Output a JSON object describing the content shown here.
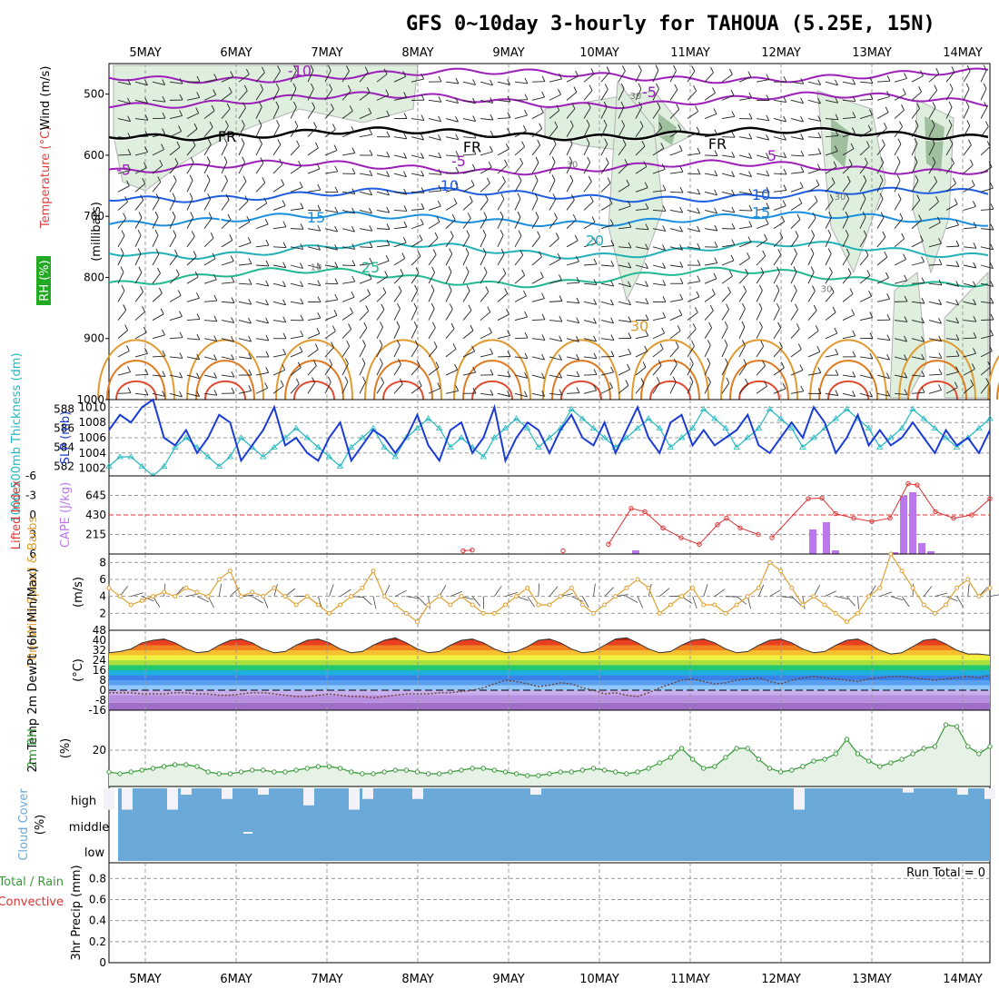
{
  "title": "GFS 0~10day 3-hourly for TAHOUA (5.25E, 15N)",
  "dates": [
    "5MAY",
    "6MAY",
    "7MAY",
    "8MAY",
    "9MAY",
    "10MAY",
    "11MAY",
    "12MAY",
    "13MAY",
    "14MAY"
  ],
  "colors": {
    "frame": "#000000",
    "grid": "#999999",
    "slp": "#1a3bd6",
    "thickness": "#22b8c0",
    "cape": "#bb77ee",
    "li": "#dd3333",
    "wind": "#e0a030",
    "rh": "#3a9a3a",
    "cloud": "#6aa9d8",
    "isotherm_cold": "#9b1fb8",
    "isotherm_mid": "#1d5de0",
    "isotherm_warm": "#e09a30"
  },
  "panels": {
    "profile": {
      "ylabel": "(millibars)",
      "left_labels": [
        "Temperature (°C)",
        "Wind (m/s)",
        "RH (%)"
      ],
      "yticks": [
        "500",
        "600",
        "700",
        "800",
        "900",
        "1000"
      ],
      "isotherm_labels": [
        "-10",
        "-5",
        "-5",
        "-5",
        "5",
        "5",
        "5",
        "10",
        "10",
        "15",
        "15",
        "20",
        "25",
        "30",
        "FR",
        "FR",
        "FR",
        "30",
        "30",
        "30",
        "30",
        "10"
      ]
    },
    "slp_thick": {
      "left_label": "1000-500mb Thickness (dm)",
      "right_label": "SLP (mb)",
      "left_ticks": [
        "588",
        "586",
        "584",
        "582"
      ],
      "right_ticks": [
        "1010",
        "1008",
        "1006",
        "1004",
        "1002"
      ]
    },
    "cape_li": {
      "left_label": "Lifted Index",
      "right_label": "CAPE (J/kg)",
      "li_ticks": [
        "-6",
        "-3",
        "0",
        "3",
        "6"
      ],
      "cape_ticks": [
        "645",
        "430",
        "215"
      ]
    },
    "wind10": {
      "label": "10m Wind Speed & Barbs",
      "unit": "(m/s)",
      "ticks": [
        "8",
        "6",
        "4",
        "2"
      ]
    },
    "temp2m": {
      "label": "2m Temp 2m DewPt (6hr Min/Max)",
      "unit": "(°C)",
      "ticks": [
        "48",
        "40",
        "32",
        "24",
        "16",
        "8",
        "0",
        "-8",
        "-16"
      ]
    },
    "rh2m": {
      "label": "2m RH",
      "unit": "(%)",
      "ticks": [
        "20"
      ]
    },
    "cloud": {
      "label": "Cloud Cover",
      "unit": "(%)",
      "levels": [
        "high",
        "middle",
        "low"
      ]
    },
    "precip": {
      "label": "3hr Precip (mm)",
      "side_label_1": "Total / Rain",
      "side_label_2": "Convective",
      "ticks": [
        "0.8",
        "0.6",
        "0.4",
        "0.2",
        "0"
      ],
      "run_total": "Run Total = 0"
    }
  },
  "chart_data": [
    {
      "type": "line",
      "title": "1000-500mb Thickness / SLP",
      "x_range": [
        "4.6MAY",
        "14.3MAY"
      ],
      "series": [
        {
          "name": "SLP (mb)",
          "values": [
            1007,
            1009,
            1008,
            1010,
            1011,
            1006,
            1005,
            1007,
            1004,
            1006,
            1009,
            1008,
            1003,
            1005,
            1007,
            1010,
            1005,
            1006,
            1004,
            1003,
            1006,
            1008,
            1003,
            1005,
            1007,
            1006,
            1004,
            1006,
            1009,
            1005,
            1003,
            1007,
            1008,
            1004,
            1006,
            1010,
            1003,
            1006,
            1008,
            1007,
            1004,
            1007,
            1009,
            1006,
            1005,
            1008,
            1004,
            1007,
            1010,
            1006,
            1004,
            1008,
            1009,
            1005,
            1007,
            1005,
            1006,
            1007,
            1009,
            1005,
            1004,
            1006,
            1008,
            1006,
            1010,
            1008,
            1004,
            1006,
            1009,
            1005,
            1007,
            1005,
            1006,
            1008,
            1006,
            1004,
            1007,
            1005,
            1006,
            1004,
            1007
          ]
        },
        {
          "name": "1000-500mb Thickness (dm)",
          "values": [
            582,
            583,
            583,
            582,
            581,
            582,
            584,
            585,
            584,
            583,
            582,
            583,
            585,
            584,
            583,
            584,
            585,
            586,
            585,
            584,
            583,
            582,
            584,
            585,
            586,
            584,
            583,
            585,
            586,
            587,
            586,
            584,
            585,
            584,
            583,
            585,
            586,
            587,
            586,
            584,
            585,
            586,
            588,
            587,
            586,
            585,
            584,
            585,
            586,
            587,
            586,
            584,
            585,
            586,
            588,
            587,
            586,
            584,
            585,
            586,
            588,
            587,
            586,
            584,
            585,
            586,
            587,
            588,
            587,
            586,
            584,
            585,
            586,
            588,
            587,
            586,
            585,
            584,
            585,
            586,
            587
          ]
        }
      ],
      "ylim_left": [
        581,
        589
      ],
      "ylim_right": [
        1001,
        1011
      ]
    },
    {
      "type": "bar",
      "title": "CAPE / Lifted Index",
      "series": [
        {
          "name": "CAPE (J/kg)",
          "points": [
            [
              10.4,
              40
            ],
            [
              12.35,
              270
            ],
            [
              12.5,
              350
            ],
            [
              12.6,
              40
            ],
            [
              13.25,
              20
            ],
            [
              13.35,
              640
            ],
            [
              13.45,
              680
            ],
            [
              13.55,
              120
            ],
            [
              13.65,
              30
            ]
          ]
        },
        {
          "name": "Lifted Index",
          "points": [
            [
              8.5,
              5.5
            ],
            [
              8.6,
              5.4
            ],
            [
              9.6,
              5.5
            ],
            [
              10.1,
              4.5
            ],
            [
              10.35,
              -1
            ],
            [
              10.5,
              -0.5
            ],
            [
              10.7,
              2
            ],
            [
              10.9,
              3.5
            ],
            [
              11.1,
              4.5
            ],
            [
              11.3,
              1.5
            ],
            [
              11.4,
              0.5
            ],
            [
              11.55,
              2
            ],
            [
              11.75,
              3
            ],
            [
              11.9,
              3.5
            ],
            [
              12.3,
              -2.5
            ],
            [
              12.45,
              -2.6
            ],
            [
              12.6,
              -0.2
            ],
            [
              12.8,
              0.5
            ],
            [
              13.0,
              1
            ],
            [
              13.2,
              0.5
            ],
            [
              13.4,
              -4.8
            ],
            [
              13.5,
              -4.6
            ],
            [
              13.7,
              -0.5
            ],
            [
              13.9,
              0.5
            ],
            [
              14.1,
              0
            ],
            [
              14.3,
              -2.5
            ]
          ]
        }
      ],
      "ylim_cape": [
        0,
        860
      ],
      "ylim_li": [
        6,
        -6
      ]
    },
    {
      "type": "line",
      "title": "10m Wind Speed",
      "series": [
        {
          "name": "10m Wind Speed (m/s)",
          "values": [
            5,
            4,
            3,
            3.5,
            4,
            4.5,
            4,
            5,
            4.5,
            4,
            6,
            7,
            4,
            4.5,
            4,
            5,
            4,
            3,
            4,
            3,
            2,
            3,
            4,
            5,
            7,
            4,
            3,
            2,
            1,
            3,
            4,
            3,
            4,
            3,
            2,
            2,
            3,
            4,
            5,
            3,
            3,
            4,
            5,
            3,
            2,
            3,
            4,
            5,
            6,
            5,
            2,
            3,
            4,
            5,
            3,
            3,
            2,
            3,
            4,
            5,
            8,
            7,
            5,
            3,
            4,
            3,
            2,
            1,
            2,
            4,
            5,
            9,
            7,
            5,
            3,
            2,
            3,
            5,
            6,
            4,
            5
          ]
        }
      ],
      "ylim": [
        0,
        9
      ]
    },
    {
      "type": "area",
      "title": "2m Temp / DewPt",
      "series": [
        {
          "name": "2m Temp (°C)",
          "values": [
            30,
            31,
            33,
            38,
            40,
            41,
            38,
            33,
            30,
            31,
            36,
            40,
            41,
            38,
            33,
            30,
            31,
            36,
            40,
            41,
            38,
            33,
            30,
            31,
            36,
            40,
            42,
            38,
            33,
            30,
            31,
            36,
            40,
            41,
            38,
            33,
            30,
            31,
            35,
            40,
            41,
            38,
            33,
            30,
            31,
            36,
            41,
            42,
            38,
            33,
            30,
            31,
            36,
            40,
            41,
            38,
            33,
            30,
            31,
            36,
            40,
            41,
            38,
            33,
            30,
            31,
            36,
            40,
            41,
            37,
            32,
            29,
            30,
            35,
            40,
            41,
            37,
            32,
            29,
            29,
            28
          ]
        },
        {
          "name": "2m DewPt (°C)",
          "values": [
            -2,
            -2,
            -2,
            -3,
            -3,
            -3,
            -2,
            -2,
            -3,
            -3,
            -4,
            -4,
            -3,
            -2,
            -2,
            -3,
            -4,
            -5,
            -5,
            -4,
            -3,
            -4,
            -5,
            -5,
            -6,
            -5,
            -4,
            -3,
            -3,
            -3,
            -2,
            -2,
            -1,
            0,
            2,
            5,
            8,
            7,
            5,
            3,
            4,
            6,
            5,
            2,
            0,
            -3,
            -2,
            -4,
            -5,
            -2,
            2,
            5,
            8,
            9,
            7,
            5,
            6,
            8,
            9,
            10,
            7,
            5,
            8,
            10,
            11,
            10,
            9,
            8,
            7,
            9,
            10,
            11,
            11,
            10,
            9,
            8,
            9,
            10,
            11,
            10,
            12
          ]
        }
      ],
      "ylim": [
        -16,
        48
      ]
    },
    {
      "type": "line",
      "title": "2m RH",
      "series": [
        {
          "name": "2m RH (%)",
          "values": [
            8,
            7,
            8,
            9,
            10,
            11,
            12,
            12,
            11,
            8,
            7,
            7,
            8,
            9,
            9,
            8,
            8,
            9,
            10,
            11,
            11,
            10,
            8,
            7,
            7,
            8,
            9,
            9,
            8,
            7,
            7,
            8,
            9,
            10,
            10,
            9,
            8,
            7,
            6,
            6,
            7,
            8,
            8,
            9,
            10,
            9,
            8,
            7,
            8,
            10,
            13,
            16,
            21,
            15,
            10,
            11,
            16,
            21,
            21,
            15,
            10,
            8,
            9,
            11,
            14,
            15,
            18,
            26,
            18,
            14,
            11,
            13,
            15,
            18,
            21,
            22,
            34,
            33,
            22,
            18,
            22
          ]
        }
      ],
      "ylim": [
        0,
        42
      ]
    },
    {
      "type": "bar",
      "title": "Cloud Cover high clear gaps",
      "series": [
        {
          "name": "high cloud clear fraction",
          "points": [
            [
              4.6,
              1
            ],
            [
              4.8,
              1
            ],
            [
              5.3,
              1
            ],
            [
              5.45,
              0.3
            ],
            [
              5.9,
              0.5
            ],
            [
              6.3,
              0.3
            ],
            [
              6.8,
              0.8
            ],
            [
              7.3,
              1
            ],
            [
              7.45,
              0.5
            ],
            [
              8.0,
              0.5
            ],
            [
              9.3,
              0.3
            ],
            [
              12.2,
              1
            ],
            [
              13.4,
              0.2
            ],
            [
              14.0,
              0.3
            ],
            [
              14.3,
              0.5
            ]
          ]
        }
      ],
      "ylim": [
        0,
        1
      ]
    },
    {
      "type": "bar",
      "title": "3hr Precip",
      "series": [
        {
          "name": "3hr Precip (mm)",
          "values": [
            0,
            0,
            0,
            0,
            0,
            0,
            0,
            0,
            0,
            0
          ]
        }
      ],
      "ylim": [
        0,
        1
      ]
    }
  ]
}
